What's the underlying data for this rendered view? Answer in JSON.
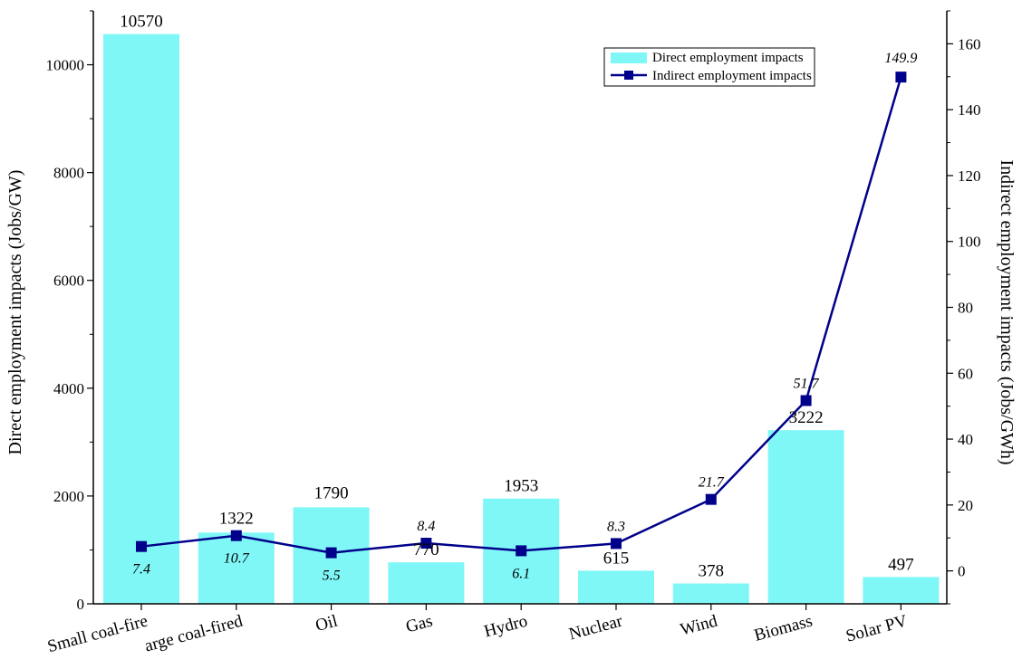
{
  "chart_data": {
    "type": "bar",
    "categories": [
      "Small coal-fire",
      "arge coal-fired",
      "Oil",
      "Gas",
      "Hydro",
      "Nuclear",
      "Wind",
      "Biomass",
      "Solar PV"
    ],
    "series": [
      {
        "name": "Direct employment impacts",
        "type": "bar",
        "axis": "left",
        "values": [
          10570,
          1322,
          1790,
          770,
          1953,
          615,
          378,
          3222,
          497
        ],
        "labels": [
          "10570",
          "1322",
          "1790",
          "770",
          "1953",
          "615",
          "378",
          "3222",
          "497"
        ],
        "color": "#80F7F7"
      },
      {
        "name": "Indirect employment impacts",
        "type": "line",
        "axis": "right",
        "values": [
          7.4,
          10.7,
          5.5,
          8.4,
          6.1,
          8.3,
          21.7,
          51.7,
          149.9
        ],
        "labels": [
          "7.4",
          "10.7",
          "5.5",
          "8.4",
          "6.1",
          "8.3",
          "21.7",
          "51.7",
          "149.9"
        ],
        "color": "#00008B"
      }
    ],
    "ylabel": "Direct employment impacts (Jobs/GW)",
    "y2label": "Indirect employment impacts (Jobs/GWh)",
    "ylim": [
      0,
      11000
    ],
    "y2lim": [
      -10,
      170
    ],
    "yticks": [
      "0",
      "2000",
      "4000",
      "6000",
      "8000",
      "10000"
    ],
    "y2ticks": [
      "0",
      "20",
      "40",
      "60",
      "80",
      "100",
      "120",
      "140",
      "160"
    ],
    "grid": false,
    "legend_position": "top-right"
  }
}
